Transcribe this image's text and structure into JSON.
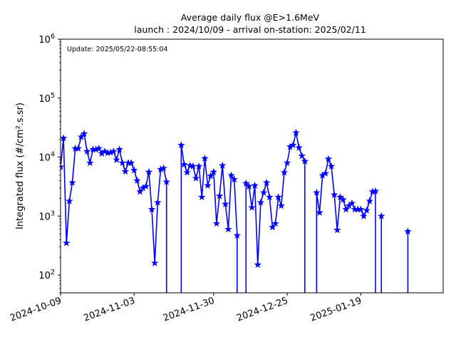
{
  "chart_data": {
    "type": "line",
    "title": "Average daily flux @E>1.6MeV",
    "subtitle": "launch : 2024/10/09 - arrival on-station: 2025/02/11",
    "xlabel": "",
    "ylabel": "Integrated flux (#/cm².s.sr)",
    "annotation": "Update: 2025/05/22-08:55:04",
    "y_scale": "log",
    "ylim": [
      50,
      1000000
    ],
    "xlim": [
      "2024-10-09",
      "2025-02-16"
    ],
    "y_tick_labels": [
      {
        "value": 100,
        "exp": "2"
      },
      {
        "value": 1000,
        "exp": "3"
      },
      {
        "value": 10000,
        "exp": "4"
      },
      {
        "value": 100000,
        "exp": "5"
      },
      {
        "value": 1000000,
        "exp": "6"
      }
    ],
    "y_tick_base": "10",
    "x_tick_labels": [
      "2024-10-09",
      "2024-11-03",
      "2024-11-30",
      "2024-12-25",
      "2025-01-19"
    ],
    "grid": false,
    "line_color": "#0000ff",
    "marker": "star",
    "series": [
      {
        "points": [
          [
            "2024-10-09",
            6800
          ],
          [
            "2024-10-10",
            21000
          ],
          [
            "2024-10-11",
            350
          ],
          [
            "2024-10-12",
            1800
          ],
          [
            "2024-10-13",
            3700
          ],
          [
            "2024-10-14",
            14000
          ],
          [
            "2024-10-15",
            14000
          ],
          [
            "2024-10-16",
            22000
          ],
          [
            "2024-10-17",
            25000
          ],
          [
            "2024-10-18",
            12500
          ],
          [
            "2024-10-19",
            8000
          ],
          [
            "2024-10-20",
            13500
          ],
          [
            "2024-10-21",
            13500
          ],
          [
            "2024-10-22",
            14000
          ],
          [
            "2024-10-23",
            11500
          ],
          [
            "2024-10-24",
            12500
          ],
          [
            "2024-10-25",
            11800
          ],
          [
            "2024-10-26",
            12000
          ],
          [
            "2024-10-27",
            12500
          ],
          [
            "2024-10-28",
            9000
          ],
          [
            "2024-10-29",
            13500
          ],
          [
            "2024-10-30",
            8000
          ],
          [
            "2024-10-31",
            5700
          ],
          [
            "2024-11-01",
            8000
          ],
          [
            "2024-11-02",
            8000
          ],
          [
            "2024-11-03",
            6000
          ],
          [
            "2024-11-04",
            4000
          ],
          [
            "2024-11-05",
            2600
          ],
          [
            "2024-11-06",
            3000
          ],
          [
            "2024-11-07",
            3200
          ],
          [
            "2024-11-08",
            5600
          ],
          [
            "2024-11-09",
            1300
          ],
          [
            "2024-11-10",
            160
          ],
          [
            "2024-11-11",
            1700
          ],
          [
            "2024-11-12",
            6200
          ],
          [
            "2024-11-13",
            6500
          ],
          [
            "2024-11-14",
            3800
          ],
          [
            "2024-11-19",
            16000
          ],
          [
            "2024-11-20",
            7500
          ],
          [
            "2024-11-21",
            5500
          ],
          [
            "2024-11-22",
            7200
          ],
          [
            "2024-11-23",
            7000
          ],
          [
            "2024-11-24",
            4400
          ],
          [
            "2024-11-25",
            7000
          ],
          [
            "2024-11-26",
            2100
          ],
          [
            "2024-11-27",
            9500
          ],
          [
            "2024-11-28",
            3300
          ],
          [
            "2024-11-29",
            4800
          ],
          [
            "2024-11-30",
            5600
          ],
          [
            "2024-12-01",
            750
          ],
          [
            "2024-12-02",
            2200
          ],
          [
            "2024-12-03",
            7200
          ],
          [
            "2024-12-04",
            1600
          ],
          [
            "2024-12-05",
            600
          ],
          [
            "2024-12-06",
            4900
          ],
          [
            "2024-12-07",
            4200
          ],
          [
            "2024-12-08",
            470
          ],
          [
            "2024-12-11",
            3600
          ],
          [
            "2024-12-12",
            3200
          ],
          [
            "2024-12-13",
            1400
          ],
          [
            "2024-12-14",
            3300
          ],
          [
            "2024-12-15",
            150
          ],
          [
            "2024-12-16",
            1700
          ],
          [
            "2024-12-17",
            2500
          ],
          [
            "2024-12-18",
            3700
          ],
          [
            "2024-12-19",
            2100
          ],
          [
            "2024-12-20",
            650
          ],
          [
            "2024-12-21",
            750
          ],
          [
            "2024-12-22",
            2100
          ],
          [
            "2024-12-23",
            1500
          ],
          [
            "2024-12-24",
            5500
          ],
          [
            "2024-12-25",
            8000
          ],
          [
            "2024-12-26",
            15000
          ],
          [
            "2024-12-27",
            16000
          ],
          [
            "2024-12-28",
            26000
          ],
          [
            "2024-12-29",
            14500
          ],
          [
            "2024-12-30",
            10500
          ],
          [
            "2024-12-31",
            8500
          ],
          [
            "2025-01-04",
            2500
          ],
          [
            "2025-01-05",
            1150
          ],
          [
            "2025-01-06",
            4900
          ],
          [
            "2025-01-07",
            5300
          ],
          [
            "2025-01-08",
            9300
          ],
          [
            "2025-01-09",
            7000
          ],
          [
            "2025-01-10",
            2300
          ],
          [
            "2025-01-11",
            580
          ],
          [
            "2025-01-12",
            2100
          ],
          [
            "2025-01-13",
            1900
          ],
          [
            "2025-01-14",
            1300
          ],
          [
            "2025-01-15",
            1500
          ],
          [
            "2025-01-16",
            1650
          ],
          [
            "2025-01-17",
            1300
          ],
          [
            "2025-01-18",
            1300
          ],
          [
            "2025-01-19",
            1300
          ],
          [
            "2025-01-20",
            1000
          ],
          [
            "2025-01-21",
            1250
          ],
          [
            "2025-01-22",
            1800
          ],
          [
            "2025-01-23",
            2600
          ],
          [
            "2025-01-24",
            2650
          ],
          [
            "2025-01-26",
            1000
          ],
          [
            "2025-02-04",
            550
          ]
        ]
      }
    ],
    "drops_to_axis_after": [
      "2024-11-14",
      "2024-11-19",
      "2024-12-08",
      "2024-12-11",
      "2024-12-31",
      "2025-01-04",
      "2025-01-16",
      "2025-01-17",
      "2025-01-23",
      "2025-01-24",
      "2025-01-26",
      "2025-02-04"
    ]
  }
}
